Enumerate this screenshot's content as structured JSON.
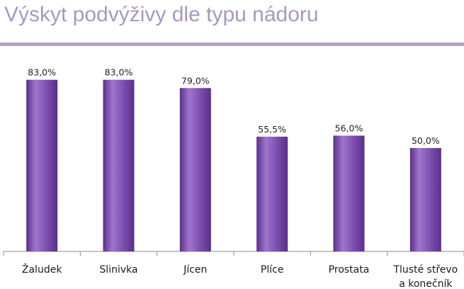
{
  "title": "Výskyt podvýživy dle typu nádoru",
  "colors": {
    "title": "#a897c2",
    "rule": "#b3a3cd",
    "bar_light": "#9f76cf",
    "bar_mid": "#7c4fae",
    "bar_dark": "#5a2f8a"
  },
  "chart_data": {
    "type": "bar",
    "categories": [
      [
        "Žaludek"
      ],
      [
        "Slinivka"
      ],
      [
        "Jícen"
      ],
      [
        "Plíce"
      ],
      [
        "Prostata"
      ],
      [
        "Tlusté střevo",
        "a konečník"
      ]
    ],
    "values": [
      83.0,
      83.0,
      79.0,
      55.5,
      56.0,
      50.0
    ],
    "value_labels": [
      "83,0%",
      "83,0%",
      "79,0%",
      "55,5%",
      "56,0%",
      "50,0%"
    ],
    "ylim": [
      0,
      100
    ],
    "grid": false,
    "legend": "none",
    "xlabel": "",
    "ylabel": ""
  }
}
